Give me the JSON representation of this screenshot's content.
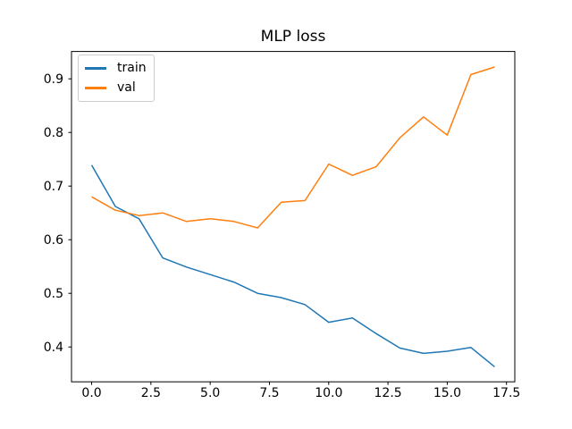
{
  "chart_data": {
    "type": "line",
    "title": "MLP loss",
    "xlabel": "",
    "ylabel": "",
    "grid": false,
    "x": [
      0,
      1,
      2,
      3,
      4,
      5,
      6,
      7,
      8,
      9,
      10,
      11,
      12,
      13,
      14,
      15,
      16,
      17
    ],
    "series": [
      {
        "name": "train",
        "color": "#1f77b4",
        "values": [
          0.739,
          0.662,
          0.639,
          0.566,
          0.549,
          0.535,
          0.521,
          0.5,
          0.492,
          0.479,
          0.446,
          0.454,
          0.425,
          0.398,
          0.388,
          0.392,
          0.399,
          0.363
        ]
      },
      {
        "name": "val",
        "color": "#ff7f0e",
        "values": [
          0.68,
          0.655,
          0.645,
          0.65,
          0.634,
          0.639,
          0.634,
          0.622,
          0.67,
          0.673,
          0.741,
          0.72,
          0.736,
          0.79,
          0.829,
          0.795,
          0.908,
          0.922
        ]
      }
    ],
    "xlim": [
      -0.85,
      17.85
    ],
    "ylim": [
      0.335,
      0.951
    ],
    "xticks": {
      "values": [
        0,
        2.5,
        5,
        7.5,
        10,
        12.5,
        15,
        17.5
      ],
      "labels": [
        "0.0",
        "2.5",
        "5.0",
        "7.5",
        "10.0",
        "12.5",
        "15.0",
        "17.5"
      ]
    },
    "yticks": {
      "values": [
        0.4,
        0.5,
        0.6,
        0.7,
        0.8,
        0.9
      ],
      "labels": [
        "0.4",
        "0.5",
        "0.6",
        "0.7",
        "0.8",
        "0.9"
      ]
    },
    "legend": {
      "position": "upper-left",
      "entries": [
        "train",
        "val"
      ]
    },
    "style": {
      "spine_color": "#000000",
      "background": "#ffffff",
      "line_width": 1.5
    }
  }
}
